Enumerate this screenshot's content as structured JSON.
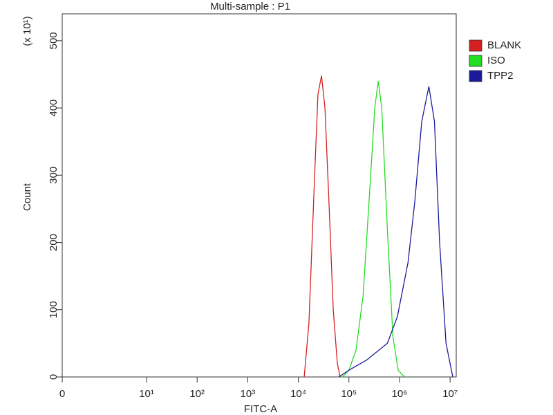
{
  "chart_data": {
    "type": "line",
    "title": "Multi-sample : P1",
    "x_label": "FITC-A",
    "y_label": "Count",
    "y_multiplier_label": "(x 10¹)",
    "xscale": "biexponential",
    "xlim": [
      0,
      13200000
    ],
    "xticks": [
      0,
      {
        "value": 10,
        "label": "10¹"
      },
      {
        "value": 100,
        "label": "10²"
      },
      {
        "value": 1000,
        "label": "10³"
      },
      {
        "value": 10000,
        "label": "10⁴"
      },
      {
        "value": 100000,
        "label": "10⁵"
      },
      {
        "value": 1000000,
        "label": "10⁶"
      },
      {
        "value": 10000000,
        "label": "10⁷"
      }
    ],
    "ylim": [
      0,
      540
    ],
    "yticks": [
      0,
      100,
      200,
      300,
      400,
      500
    ],
    "legend": "right",
    "series": [
      {
        "name": "BLANK",
        "color": "#d42020",
        "x": [
          13060,
          16200,
          21000,
          24400,
          28700,
          33600,
          40800,
          49000,
          59000,
          67000
        ],
        "values": [
          0,
          80,
          300,
          420,
          448,
          400,
          250,
          100,
          20,
          0
        ]
      },
      {
        "name": "ISO",
        "color": "#22dd22",
        "x": [
          74000,
          100000,
          138000,
          190000,
          259000,
          324000,
          380000,
          445000,
          575000,
          740000,
          940000,
          1260000
        ],
        "values": [
          0,
          10,
          40,
          120,
          280,
          400,
          440,
          400,
          220,
          60,
          10,
          0
        ]
      },
      {
        "name": "TPP2",
        "color": "#1a1a9a",
        "x": [
          63000,
          100000,
          222000,
          575000,
          910000,
          1470000,
          2000000,
          2750000,
          3800000,
          4900000,
          6200000,
          8300000,
          11300000
        ],
        "values": [
          0,
          10,
          25,
          50,
          90,
          170,
          260,
          380,
          432,
          380,
          200,
          50,
          0
        ]
      }
    ]
  }
}
